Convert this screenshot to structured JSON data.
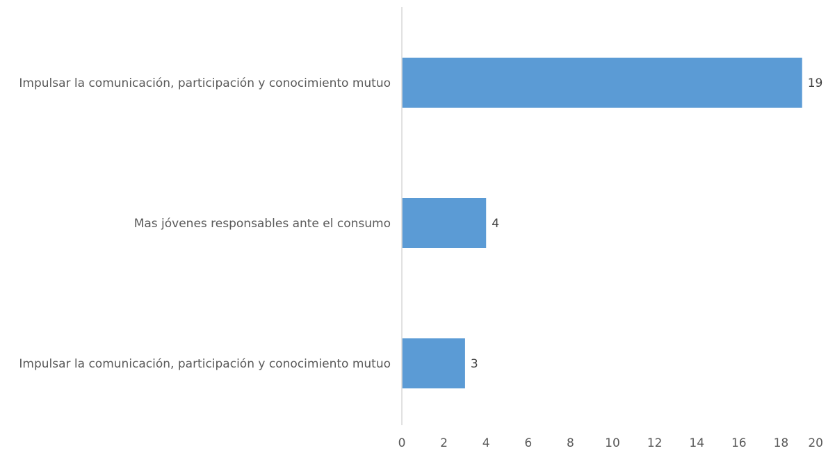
{
  "chart_data": {
    "type": "bar",
    "orientation": "horizontal",
    "categories": [
      "Impulsar la comunicación, participación y conocimiento mutuo",
      "Mas jóvenes responsables ante el consumo",
      "Impulsar la comunicación, participación y conocimiento mutuo"
    ],
    "values": [
      19,
      4,
      3
    ],
    "data_labels": [
      "19",
      "4",
      "3"
    ],
    "xlim": [
      0,
      20
    ],
    "xticks": [
      0,
      2,
      4,
      6,
      8,
      10,
      12,
      14,
      16,
      18,
      20
    ],
    "xlabel": "",
    "ylabel": "",
    "title": "",
    "grid": false,
    "legend": "none",
    "colors": {
      "bar": "#5B9BD5",
      "axis": "#D9D9D9",
      "category_text": "#595959",
      "tick_text": "#595959",
      "value_text": "#404040"
    }
  }
}
